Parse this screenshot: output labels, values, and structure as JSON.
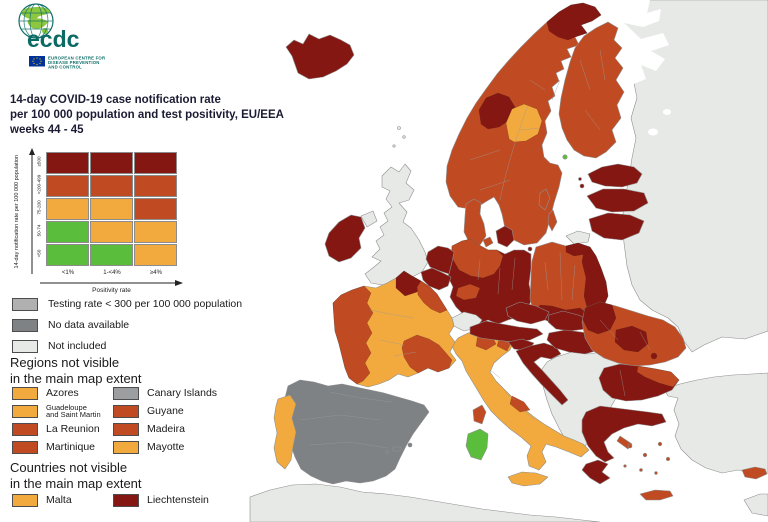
{
  "logo": {
    "wordmark": "ecdc",
    "org_lines": [
      "EUROPEAN CENTRE FOR",
      "DISEASE PREVENTION",
      "AND CONTROL"
    ]
  },
  "title": {
    "lines": [
      "14-day COVID-19 case notification rate",
      "per 100 000 population and test positivity, EU/EEA",
      "weeks 44 - 45"
    ]
  },
  "matrix": {
    "y_axis_label": "14-day notification rate per 100 000 population",
    "x_axis_label": "Positivity rate",
    "row_labels": [
      "≥500",
      ">200-499",
      "75-200",
      "50-74",
      "<50"
    ],
    "col_labels": [
      "<1%",
      "1-<4%",
      "≥4%"
    ],
    "cells": [
      [
        "rate_dark",
        "rate_dark",
        "rate_dark"
      ],
      [
        "rate_med",
        "rate_med",
        "rate_med"
      ],
      [
        "rate_orange",
        "rate_orange",
        "rate_med"
      ],
      [
        "rate_green",
        "rate_orange",
        "rate_orange"
      ],
      [
        "rate_green",
        "rate_green",
        "rate_orange"
      ]
    ]
  },
  "legend_items": [
    {
      "label": "Testing rate < 300 per 100 000 population",
      "color_key": "testing_low"
    },
    {
      "label": "No data available",
      "color_key": "no_data"
    },
    {
      "label": "Not included",
      "color_key": "not_included"
    }
  ],
  "regions_section": {
    "heading_lines": [
      "Regions not visible",
      "in the main map extent"
    ],
    "items": [
      {
        "label": "Azores",
        "color_key": "rate_orange"
      },
      {
        "label": "Canary Islands",
        "color_key": "canary_grey"
      },
      {
        "label": "Guadeloupe",
        "label2": "and Saint Martin",
        "color_key": "rate_orange"
      },
      {
        "label": "Guyane",
        "color_key": "rate_med"
      },
      {
        "label": "La Reunion",
        "color_key": "rate_med"
      },
      {
        "label": "Madeira",
        "color_key": "rate_med"
      },
      {
        "label": "Martinique",
        "color_key": "rate_med"
      },
      {
        "label": "Mayotte",
        "color_key": "rate_orange"
      }
    ]
  },
  "countries_section": {
    "heading_lines": [
      "Countries not visible",
      "in the main map extent"
    ],
    "items": [
      {
        "label": "Malta",
        "color_key": "rate_orange"
      },
      {
        "label": "Liechtenstein",
        "color_key": "rate_dark"
      }
    ]
  },
  "colors": {
    "rate_dark": "#841712",
    "rate_med": "#c04b22",
    "rate_orange": "#f2a93d",
    "rate_green": "#5bbd3c",
    "no_data": "#7e8284",
    "testing_low": "#b0b0b0",
    "canary_grey": "#9b9fa1",
    "not_included": "#e7e9e7",
    "sea": "#ffffff"
  },
  "map": {
    "region_categories": {
      "east_europe": "not_included",
      "white_sea": "sea",
      "lake1": "sea",
      "lake2": "sea",
      "africa": "not_included",
      "turkey": "not_included",
      "syria": "not_included",
      "balkans": "not_included",
      "uk": "not_included",
      "n_ireland": "not_included",
      "shetland": "not_included",
      "ireland": "rate_dark",
      "iceland": "rate_dark",
      "scandinavia": "rate_med",
      "norway_north": "rate_dark",
      "trondelag": "rate_dark",
      "jamtland": "rate_orange",
      "aland": "rate_green",
      "gotland": "rate_med",
      "oland": "rate_med",
      "finland": "rate_med",
      "estonia": "rate_dark",
      "saaremaa": "rate_dark",
      "latvia": "rate_dark",
      "lithuania": "rate_dark",
      "kaliningrad": "not_included",
      "jutland": "rate_med",
      "funen": "rate_med",
      "zealand": "rate_dark",
      "bornholm": "rate_dark",
      "italy": "rate_orange",
      "italy_ne1": "rate_med",
      "italy_ne2": "rate_med",
      "italy_marche": "rate_med",
      "sicily": "rate_orange",
      "sardinia": "rate_green",
      "corsica": "rate_med",
      "germany": "rate_dark",
      "germany_north": "rate_med",
      "germany_mid": "rate_med",
      "netherlands": "rate_dark",
      "belgium": "rate_dark",
      "poland": "rate_med",
      "poland_east": "rate_dark",
      "poland_south": "rate_dark",
      "poland_ne": "rate_dark",
      "czechia": "rate_dark",
      "switzerland": "not_included",
      "austria": "rate_dark",
      "slovenia": "rate_dark",
      "croatia": "rate_dark",
      "slovakia": "rate_dark",
      "hungary": "rate_dark",
      "romania": "rate_med",
      "romania_nw": "rate_dark",
      "romania_center": "rate_dark",
      "bucharest": "rate_dark",
      "bulgaria": "rate_dark",
      "bulgaria_ne": "rate_med",
      "greece": "rate_dark",
      "peloponnese": "rate_dark",
      "euboea": "rate_med",
      "greek_island": "rate_med",
      "crete": "rate_med",
      "cyprus": "rate_med",
      "france": "rate_orange",
      "france_north": "rate_dark",
      "france_west": "rate_med",
      "france_grand_est": "rate_med",
      "france_southeast": "rate_med",
      "spain": "no_data",
      "portugal": "rate_orange",
      "balearics": "no_data"
    }
  }
}
